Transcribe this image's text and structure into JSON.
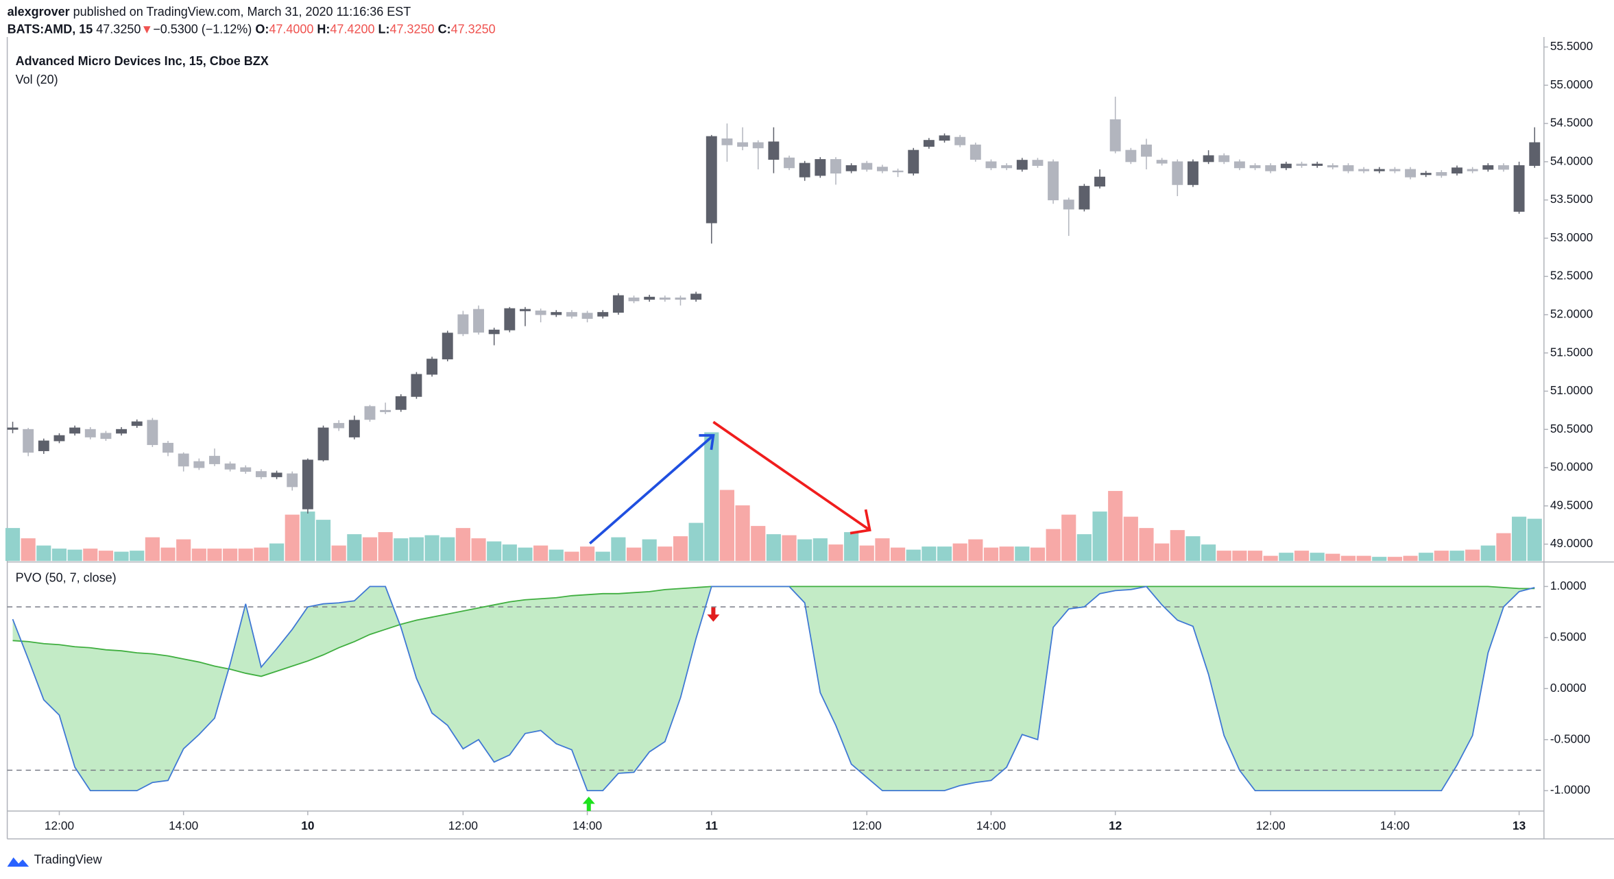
{
  "header": {
    "author": "alexgrover",
    "published": "published on TradingView.com, March 31, 2020 11:16:36 EST",
    "symbol": "BATS:AMD, 15",
    "last": "47.3250",
    "arrow": "▼",
    "change": "−0.5300 (−1.12%)",
    "ohlc": [
      {
        "label": "O:",
        "value": "47.4000"
      },
      {
        "label": "H:",
        "value": "47.4200"
      },
      {
        "label": "L:",
        "value": "47.3250"
      },
      {
        "label": "C:",
        "value": "47.3250"
      }
    ]
  },
  "footer": {
    "brand": "TradingView"
  },
  "chart_data": {
    "type": "candlestick",
    "title": "Advanced Micro Devices Inc, 15, Cboe BZX",
    "up_color": "#5d606b",
    "down_color": "#b2b5be",
    "ylim": [
      48.78,
      55.63
    ],
    "yticks": [
      {
        "value": 49,
        "label": "49.0000"
      },
      {
        "value": 49.5,
        "label": "49.5000"
      },
      {
        "value": 50,
        "label": "50.0000"
      },
      {
        "value": 50.5,
        "label": "50.5000"
      },
      {
        "value": 51,
        "label": "51.0000"
      },
      {
        "value": 51.5,
        "label": "51.5000"
      },
      {
        "value": 52,
        "label": "52.0000"
      },
      {
        "value": 52.5,
        "label": "52.5000"
      },
      {
        "value": 53,
        "label": "53.0000"
      },
      {
        "value": 53.5,
        "label": "53.5000"
      },
      {
        "value": 54,
        "label": "54.0000"
      },
      {
        "value": 54.5,
        "label": "54.5000"
      },
      {
        "value": 55,
        "label": "55.0000"
      },
      {
        "value": 55.5,
        "label": "55.5000"
      }
    ],
    "xlim": [
      -0.35,
      98.6
    ],
    "xticks": [
      {
        "value": 3,
        "label": "12:00"
      },
      {
        "value": 11,
        "label": "14:00"
      },
      {
        "value": 19,
        "label": "10"
      },
      {
        "value": 29,
        "label": "12:00"
      },
      {
        "value": 37,
        "label": "14:00"
      },
      {
        "value": 45,
        "label": "11"
      },
      {
        "value": 55,
        "label": "12:00"
      },
      {
        "value": 63,
        "label": "14:00"
      },
      {
        "value": 71,
        "label": "12"
      },
      {
        "value": 81,
        "label": "12:00"
      },
      {
        "value": 89,
        "label": "14:00"
      },
      {
        "value": 97,
        "label": "13"
      }
    ],
    "open": [
      50.5,
      50.5,
      50.22,
      50.35,
      50.45,
      50.5,
      50.45,
      50.45,
      50.55,
      50.62,
      50.32,
      50.18,
      50.08,
      50.15,
      50.05,
      50.0,
      49.95,
      49.88,
      49.92,
      49.46,
      50.1,
      50.58,
      50.4,
      50.8,
      50.75,
      50.76,
      50.93,
      51.22,
      51.42,
      52.0,
      52.07,
      51.75,
      51.8,
      52.05,
      52.05,
      52.0,
      52.03,
      52.02,
      51.98,
      52.03,
      52.22,
      52.2,
      52.22,
      52.22,
      52.2,
      53.2,
      54.3,
      54.25,
      54.25,
      54.03,
      54.05,
      53.8,
      53.82,
      54.03,
      53.88,
      53.98,
      53.93,
      53.88,
      53.85,
      54.2,
      54.28,
      54.32,
      54.22,
      54.0,
      53.95,
      53.9,
      54.02,
      54.0,
      53.5,
      53.38,
      53.68,
      54.55,
      54.15,
      54.22,
      54.02,
      54.0,
      53.7,
      54.0,
      54.08,
      54.0,
      53.95,
      53.95,
      53.92,
      53.97,
      53.95,
      53.95,
      53.95,
      53.9,
      53.88,
      53.9,
      53.9,
      53.83,
      53.86,
      53.85,
      53.9,
      53.9,
      53.95,
      53.35,
      53.95
    ],
    "high": [
      50.6,
      50.52,
      50.38,
      50.45,
      50.55,
      50.53,
      50.48,
      50.53,
      50.63,
      50.65,
      50.35,
      50.2,
      50.12,
      50.25,
      50.08,
      50.03,
      49.98,
      49.96,
      49.95,
      50.12,
      50.55,
      50.62,
      50.68,
      50.82,
      50.85,
      50.96,
      51.25,
      51.45,
      51.79,
      52.05,
      52.12,
      51.83,
      52.1,
      52.1,
      52.08,
      52.06,
      52.06,
      52.05,
      52.06,
      52.28,
      52.25,
      52.26,
      52.25,
      52.25,
      52.3,
      54.35,
      54.5,
      54.45,
      54.28,
      54.45,
      54.08,
      54.01,
      54.06,
      54.06,
      53.98,
      54.01,
      53.96,
      53.91,
      54.18,
      54.31,
      54.37,
      54.35,
      54.25,
      54.03,
      53.98,
      54.05,
      54.05,
      54.03,
      53.53,
      53.71,
      53.9,
      54.85,
      54.18,
      54.3,
      54.05,
      54.03,
      54.03,
      54.15,
      54.11,
      54.03,
      53.98,
      53.98,
      54.0,
      54.0,
      54.0,
      53.98,
      53.98,
      53.93,
      53.93,
      53.93,
      53.93,
      53.88,
      53.89,
      53.95,
      53.93,
      53.98,
      53.98,
      54.0,
      54.45
    ],
    "low": [
      50.45,
      50.15,
      50.18,
      50.32,
      50.42,
      50.37,
      50.35,
      50.42,
      50.52,
      50.27,
      50.15,
      49.95,
      49.97,
      50.02,
      49.95,
      49.92,
      49.85,
      49.85,
      49.7,
      49.4,
      50.08,
      50.48,
      50.37,
      50.6,
      50.7,
      50.73,
      50.9,
      51.19,
      51.39,
      51.72,
      51.74,
      51.6,
      51.77,
      51.85,
      51.9,
      51.97,
      51.95,
      51.9,
      51.95,
      52.0,
      52.15,
      52.17,
      52.17,
      52.12,
      52.17,
      52.93,
      54.0,
      54.15,
      53.9,
      53.85,
      53.89,
      53.75,
      53.79,
      53.7,
      53.85,
      53.87,
      53.85,
      53.8,
      53.82,
      54.17,
      54.25,
      54.19,
      54.0,
      53.89,
      53.89,
      53.87,
      53.92,
      53.45,
      53.03,
      53.35,
      53.65,
      54.11,
      53.97,
      53.9,
      53.95,
      53.55,
      53.67,
      53.97,
      53.97,
      53.89,
      53.89,
      53.85,
      53.89,
      53.92,
      53.92,
      53.9,
      53.85,
      53.85,
      53.85,
      53.85,
      53.77,
      53.8,
      53.79,
      53.82,
      53.85,
      53.87,
      53.87,
      53.32,
      53.92
    ],
    "close": [
      50.52,
      50.2,
      50.35,
      50.42,
      50.52,
      50.4,
      50.38,
      50.5,
      50.6,
      50.3,
      50.2,
      50.02,
      50.0,
      50.05,
      49.98,
      49.95,
      49.88,
      49.93,
      49.75,
      50.1,
      50.52,
      50.52,
      50.62,
      50.63,
      50.73,
      50.93,
      51.22,
      51.42,
      51.76,
      51.75,
      51.77,
      51.8,
      52.08,
      52.07,
      52.0,
      52.03,
      51.98,
      51.95,
      52.03,
      52.25,
      52.18,
      52.23,
      52.2,
      52.2,
      52.27,
      54.33,
      54.22,
      54.2,
      54.18,
      54.26,
      53.92,
      53.98,
      54.03,
      53.85,
      53.95,
      53.9,
      53.88,
      53.87,
      54.15,
      54.28,
      54.34,
      54.22,
      54.03,
      53.92,
      53.92,
      54.02,
      53.95,
      53.5,
      53.38,
      53.68,
      53.8,
      54.14,
      54.0,
      54.07,
      53.98,
      53.7,
      54.0,
      54.08,
      54.0,
      53.92,
      53.92,
      53.88,
      53.97,
      53.95,
      53.97,
      53.93,
      53.88,
      53.88,
      53.9,
      53.88,
      53.8,
      53.85,
      53.82,
      53.92,
      53.88,
      53.95,
      53.9,
      53.95,
      54.25
    ],
    "volume": {
      "name": "Vol (20)",
      "up_color": "#92d2cc",
      "down_color": "#f7a9a7",
      "ylim": [
        0,
        509
      ],
      "values": [
        32,
        22,
        15,
        12,
        11,
        12,
        10,
        9,
        10,
        23,
        13,
        21,
        12,
        12,
        12,
        12,
        13,
        17,
        45,
        48,
        40,
        15,
        26,
        23,
        28,
        22,
        23,
        25,
        23,
        32,
        22,
        19,
        16,
        13,
        15,
        11,
        9,
        14,
        9,
        23,
        13,
        21,
        14,
        24,
        37,
        125,
        69,
        54,
        34,
        26,
        25,
        21,
        22,
        16,
        28,
        15,
        22,
        13,
        11,
        14,
        14,
        17,
        21,
        13,
        14,
        14,
        13,
        31,
        45,
        26,
        48,
        68,
        43,
        32,
        17,
        30,
        24,
        16,
        10,
        10,
        10,
        5,
        8,
        10,
        8,
        7,
        5,
        5,
        4,
        4,
        5,
        8,
        10,
        10,
        11,
        15,
        27,
        43,
        41
      ]
    },
    "pvo": {
      "name": "PVO (50, 7, close)",
      "color": "#3f78d4",
      "signal_color": "#3fae3f",
      "fill": "#c3ebc6",
      "ylim": [
        -1.2,
        1.22
      ],
      "yticks": [
        {
          "value": 1,
          "label": "1.0000"
        },
        {
          "value": 0.5,
          "label": "0.5000"
        },
        {
          "value": 0,
          "label": "0.0000"
        },
        {
          "value": -0.5,
          "label": "-0.5000"
        },
        {
          "value": -1,
          "label": "-1.0000"
        }
      ],
      "levels": [
        0.8,
        -0.8
      ],
      "values": [
        0.68,
        0.29,
        -0.11,
        -0.26,
        -0.77,
        -1.0,
        -1.0,
        -1.0,
        -1.0,
        -0.92,
        -0.9,
        -0.59,
        -0.45,
        -0.29,
        0.24,
        0.83,
        0.21,
        0.39,
        0.58,
        0.8,
        0.83,
        0.84,
        0.86,
        1.0,
        1.0,
        0.6,
        0.1,
        -0.24,
        -0.36,
        -0.59,
        -0.5,
        -0.72,
        -0.65,
        -0.44,
        -0.41,
        -0.54,
        -0.6,
        -1.0,
        -1.0,
        -0.83,
        -0.82,
        -0.62,
        -0.52,
        -0.09,
        0.49,
        1.0,
        1.0,
        1.0,
        1.0,
        1.0,
        1.0,
        0.84,
        -0.04,
        -0.36,
        -0.74,
        -0.87,
        -1.0,
        -1.0,
        -1.0,
        -1.0,
        -1.0,
        -0.95,
        -0.92,
        -0.9,
        -0.77,
        -0.45,
        -0.5,
        0.6,
        0.78,
        0.8,
        0.93,
        0.96,
        0.97,
        1.0,
        0.82,
        0.67,
        0.61,
        0.14,
        -0.46,
        -0.8,
        -1.0,
        -1.0,
        -1.0,
        -1.0,
        -1.0,
        -1.0,
        -1.0,
        -1.0,
        -1.0,
        -1.0,
        -1.0,
        -1.0,
        -1.0,
        -0.75,
        -0.46,
        0.35,
        0.8,
        0.95,
        0.99
      ],
      "signal": [
        0.47,
        0.46,
        0.44,
        0.43,
        0.41,
        0.4,
        0.38,
        0.37,
        0.35,
        0.34,
        0.32,
        0.29,
        0.26,
        0.22,
        0.19,
        0.15,
        0.12,
        0.17,
        0.22,
        0.27,
        0.33,
        0.4,
        0.46,
        0.53,
        0.58,
        0.63,
        0.67,
        0.7,
        0.73,
        0.76,
        0.79,
        0.82,
        0.85,
        0.87,
        0.88,
        0.89,
        0.91,
        0.92,
        0.93,
        0.93,
        0.94,
        0.95,
        0.97,
        0.98,
        0.99,
        1.0,
        1.0,
        1.0,
        1.0,
        1.0,
        1.0,
        1.0,
        1.0,
        1.0,
        1.0,
        1.0,
        1.0,
        1.0,
        1.0,
        1.0,
        1.0,
        1.0,
        1.0,
        1.0,
        1.0,
        1.0,
        1.0,
        1.0,
        1.0,
        1.0,
        1.0,
        1.0,
        1.0,
        1.0,
        1.0,
        1.0,
        1.0,
        1.0,
        1.0,
        1.0,
        1.0,
        1.0,
        1.0,
        1.0,
        1.0,
        1.0,
        1.0,
        1.0,
        1.0,
        1.0,
        1.0,
        1.0,
        1.0,
        1.0,
        1.0,
        1.0,
        0.99,
        0.98,
        0.98
      ]
    }
  }
}
